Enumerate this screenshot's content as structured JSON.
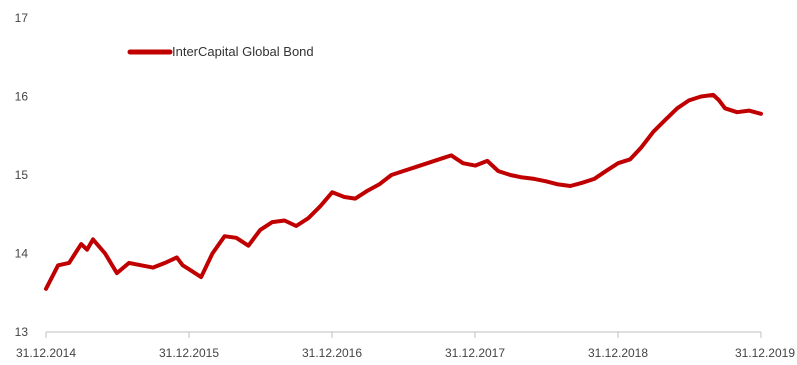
{
  "chart_data": {
    "type": "line",
    "title": "",
    "xlabel": "",
    "ylabel": "",
    "x_ticks": [
      "31.12.2014",
      "31.12.2015",
      "31.12.2016",
      "31.12.2017",
      "31.12.2018",
      "31.12.2019"
    ],
    "y_ticks": [
      13,
      14,
      15,
      16,
      17
    ],
    "ylim": [
      13,
      17
    ],
    "xlim": [
      "2014-12-31",
      "2019-12-31"
    ],
    "grid": false,
    "legend_position": "top-left",
    "series": [
      {
        "name": "InterCapital Global Bond",
        "color": "#c00000",
        "x": [
          "2014-12-31",
          "2015-01-31",
          "2015-02-28",
          "2015-03-31",
          "2015-04-15",
          "2015-04-30",
          "2015-05-31",
          "2015-06-30",
          "2015-07-31",
          "2015-08-31",
          "2015-09-30",
          "2015-10-31",
          "2015-11-30",
          "2015-12-15",
          "2015-12-31",
          "2016-01-31",
          "2016-02-29",
          "2016-03-31",
          "2016-04-30",
          "2016-05-31",
          "2016-06-30",
          "2016-07-31",
          "2016-08-31",
          "2016-09-30",
          "2016-10-31",
          "2016-11-30",
          "2016-12-31",
          "2017-01-31",
          "2017-02-28",
          "2017-03-31",
          "2017-04-30",
          "2017-05-31",
          "2017-06-30",
          "2017-07-31",
          "2017-08-31",
          "2017-09-30",
          "2017-10-31",
          "2017-11-30",
          "2017-12-31",
          "2018-01-31",
          "2018-02-28",
          "2018-03-31",
          "2018-04-30",
          "2018-05-31",
          "2018-06-30",
          "2018-07-31",
          "2018-08-31",
          "2018-09-30",
          "2018-10-31",
          "2018-11-30",
          "2018-12-31",
          "2019-01-31",
          "2019-02-28",
          "2019-03-31",
          "2019-04-30",
          "2019-05-31",
          "2019-06-30",
          "2019-07-31",
          "2019-08-31",
          "2019-09-15",
          "2019-09-30",
          "2019-10-31",
          "2019-11-30",
          "2019-12-31"
        ],
        "values": [
          13.55,
          13.85,
          13.88,
          14.12,
          14.05,
          14.18,
          14.0,
          13.75,
          13.88,
          13.85,
          13.82,
          13.88,
          13.95,
          13.85,
          13.8,
          13.7,
          14.0,
          14.22,
          14.2,
          14.1,
          14.3,
          14.4,
          14.42,
          14.35,
          14.45,
          14.6,
          14.78,
          14.72,
          14.7,
          14.8,
          14.88,
          15.0,
          15.05,
          15.1,
          15.15,
          15.2,
          15.25,
          15.15,
          15.12,
          15.18,
          15.05,
          15.0,
          14.97,
          14.95,
          14.92,
          14.88,
          14.86,
          14.9,
          14.95,
          15.05,
          15.15,
          15.2,
          15.35,
          15.55,
          15.7,
          15.85,
          15.95,
          16.0,
          16.02,
          15.95,
          15.85,
          15.8,
          15.82,
          15.78
        ]
      }
    ]
  }
}
